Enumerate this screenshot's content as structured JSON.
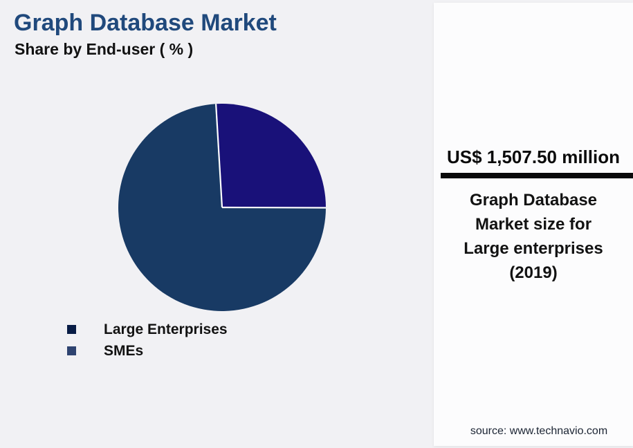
{
  "header": {
    "title": "Graph Database Market",
    "subtitle": "Share by End-user ( % )"
  },
  "legend": {
    "items": [
      {
        "label": "Large Enterprises",
        "color": "#081c45"
      },
      {
        "label": "SMEs",
        "color": "#2e4370"
      }
    ]
  },
  "panel": {
    "value": "US$ 1,507.50 million",
    "caption": "Graph Database Market size for Large enterprises (2019)",
    "source": "source: www.technavio.com"
  },
  "chart_data": {
    "type": "pie",
    "title": "Graph Database Market",
    "subtitle": "Share by End-user ( % )",
    "categories": [
      "Large Enterprises",
      "SMEs"
    ],
    "values": [
      74,
      26
    ],
    "unit": "%",
    "colors": [
      "#183a64",
      "#191179"
    ],
    "legend_position": "bottom-left",
    "start_angle_deg": -3.4,
    "slices": [
      {
        "label": "SMEs",
        "pct": 26,
        "color": "#191179"
      },
      {
        "label": "Large Enterprises",
        "pct": 74,
        "color": "#183a64"
      }
    ],
    "separator_color": "#ffffff",
    "annotation": {
      "value": "US$ 1,507.50 million",
      "caption": "Graph Database Market size for Large enterprises (2019)"
    }
  }
}
